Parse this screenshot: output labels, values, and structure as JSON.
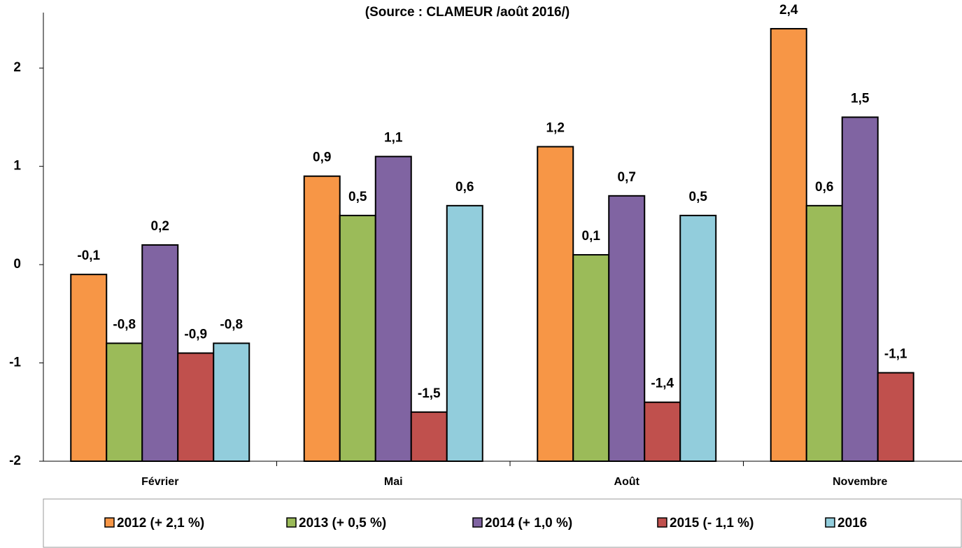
{
  "chart_data": {
    "type": "bar",
    "title": "(Source : CLAMEUR /août 2016/)",
    "categories": [
      "Février",
      "Mai",
      "Août",
      "Novembre"
    ],
    "series": [
      {
        "name": "2012 (+ 2,1 %)",
        "color": "#f79646",
        "values": [
          -0.1,
          0.9,
          1.2,
          2.4
        ],
        "value_labels": [
          "-0,1",
          "0,9",
          "1,2",
          "2,4"
        ]
      },
      {
        "name": "2013 (+ 0,5 %)",
        "color": "#9bbb59",
        "values": [
          -0.8,
          0.5,
          0.1,
          0.6
        ],
        "value_labels": [
          "-0,8",
          "0,5",
          "0,1",
          "0,6"
        ]
      },
      {
        "name": "2014 (+ 1,0 %)",
        "color": "#8064a2",
        "values": [
          0.2,
          1.1,
          0.7,
          1.5
        ],
        "value_labels": [
          "0,2",
          "1,1",
          "0,7",
          "1,5"
        ]
      },
      {
        "name": "2015 (- 1,1 %)",
        "color": "#c0504d",
        "values": [
          -0.9,
          -1.5,
          -1.4,
          -1.1
        ],
        "value_labels": [
          "-0,9",
          "-1,5",
          "-1,4",
          "-1,1"
        ]
      },
      {
        "name": "2016",
        "color": "#92cddc",
        "values": [
          -0.8,
          0.6,
          0.5,
          null
        ],
        "value_labels": [
          "-0,8",
          "0,6",
          "0,5",
          null
        ]
      }
    ],
    "ylim": [
      -2,
      2.5
    ],
    "yticks": [
      -2,
      -1,
      0,
      1,
      2
    ],
    "legend": "bottom"
  }
}
